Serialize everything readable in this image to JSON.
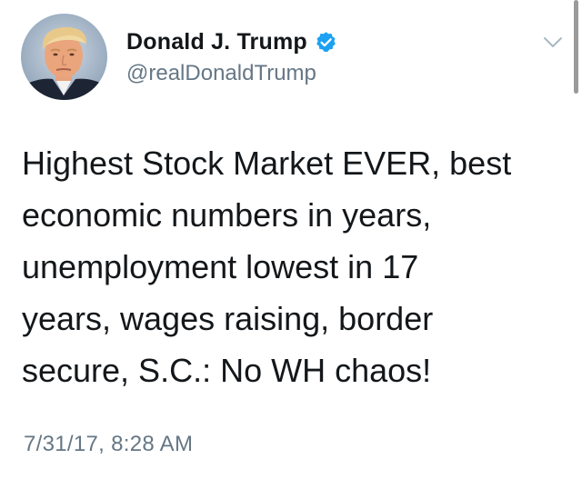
{
  "tweet": {
    "author": {
      "display_name": "Donald J. Trump",
      "handle": "@realDonaldTrump",
      "verified": true,
      "avatar_icon": "profile-photo"
    },
    "text_lines": [
      "Highest Stock Market EVER, best",
      "economic numbers in years,",
      "unemployment lowest in 17",
      "years, wages raising, border",
      "secure, S.C.: No WH chaos!"
    ],
    "timestamp": "7/31/17, 8:28 AM",
    "menu_icon": "chevron-down-icon"
  },
  "colors": {
    "verified_badge": "#1da1f2",
    "secondary_text": "#657786",
    "primary_text": "#14171a"
  }
}
